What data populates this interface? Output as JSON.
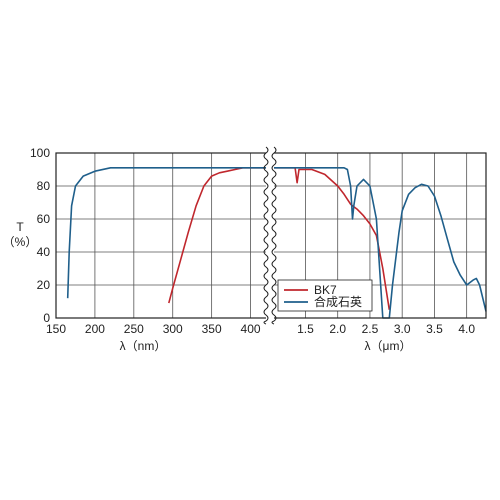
{
  "chart_data": {
    "type": "line",
    "ylabel": "T",
    "ylabel_unit": "（%）",
    "y_ticks": [
      "0",
      "20",
      "40",
      "60",
      "80",
      "100"
    ],
    "ylim": [
      0,
      100
    ],
    "grid": true,
    "legend_position": "bottom-right",
    "colors": {
      "BK7": "#c0272d",
      "quartz": "#1f5f8b",
      "grid": "#555555",
      "frame": "#222222"
    },
    "panels": [
      {
        "xlabel": "λ（nm）",
        "x_ticks": [
          "150",
          "200",
          "250",
          "300",
          "350",
          "400"
        ],
        "xlim": [
          150,
          425
        ]
      },
      {
        "xlabel": "λ（μm）",
        "x_ticks": [
          "1.5",
          "2.0",
          "2.5",
          "3.0",
          "3.5",
          "4.0"
        ],
        "xlim": [
          0.95,
          4.3
        ]
      }
    ],
    "series": [
      {
        "name": "BK7",
        "uv": [
          [
            295,
            9
          ],
          [
            300,
            18
          ],
          [
            310,
            35
          ],
          [
            320,
            52
          ],
          [
            330,
            68
          ],
          [
            340,
            80
          ],
          [
            350,
            86
          ],
          [
            360,
            88
          ],
          [
            370,
            89
          ],
          [
            380,
            90
          ],
          [
            390,
            91
          ],
          [
            400,
            91
          ],
          [
            425,
            91
          ]
        ],
        "ir": [
          [
            0.95,
            91
          ],
          [
            1.34,
            91
          ],
          [
            1.37,
            82
          ],
          [
            1.4,
            90
          ],
          [
            1.6,
            90
          ],
          [
            1.8,
            87
          ],
          [
            2.0,
            80
          ],
          [
            2.1,
            75
          ],
          [
            2.2,
            69
          ],
          [
            2.3,
            66
          ],
          [
            2.4,
            62
          ],
          [
            2.5,
            57
          ],
          [
            2.6,
            50
          ],
          [
            2.7,
            30
          ],
          [
            2.8,
            5
          ]
        ]
      },
      {
        "name": "合成石英",
        "uv": [
          [
            165,
            12
          ],
          [
            167,
            40
          ],
          [
            170,
            68
          ],
          [
            175,
            80
          ],
          [
            185,
            86
          ],
          [
            200,
            89
          ],
          [
            220,
            91
          ],
          [
            425,
            91
          ]
        ],
        "ir": [
          [
            0.95,
            91
          ],
          [
            2.1,
            91
          ],
          [
            2.15,
            90
          ],
          [
            2.2,
            80
          ],
          [
            2.23,
            60
          ],
          [
            2.25,
            68
          ],
          [
            2.3,
            80
          ],
          [
            2.4,
            84
          ],
          [
            2.5,
            80
          ],
          [
            2.6,
            60
          ],
          [
            2.65,
            30
          ],
          [
            2.7,
            0
          ],
          [
            2.8,
            0
          ],
          [
            2.85,
            20
          ],
          [
            2.95,
            52
          ],
          [
            3.0,
            65
          ],
          [
            3.1,
            75
          ],
          [
            3.2,
            79
          ],
          [
            3.3,
            81
          ],
          [
            3.4,
            80
          ],
          [
            3.5,
            74
          ],
          [
            3.6,
            62
          ],
          [
            3.7,
            48
          ],
          [
            3.8,
            34
          ],
          [
            3.9,
            26
          ],
          [
            4.0,
            20
          ],
          [
            4.1,
            23
          ],
          [
            4.15,
            24
          ],
          [
            4.2,
            20
          ],
          [
            4.3,
            4
          ]
        ]
      }
    ]
  }
}
